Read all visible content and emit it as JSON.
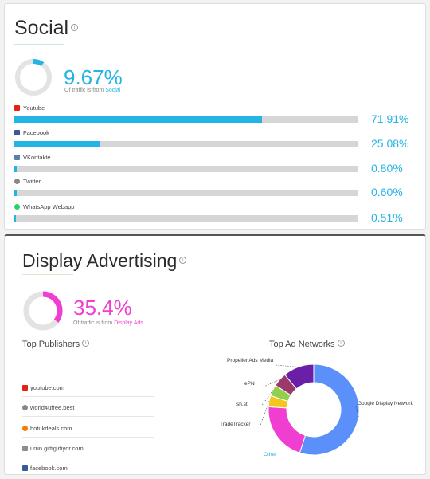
{
  "social": {
    "title": "Social",
    "percent": "9.67%",
    "gauge_fraction": 0.0967,
    "sub_prefix": "Of traffic is from ",
    "sub_link": "Social",
    "sources": [
      {
        "name": "Youtube",
        "pct": "71.91%",
        "value": 71.91,
        "icon": "youtube-icon",
        "color": "#e62117"
      },
      {
        "name": "Facebook",
        "pct": "25.08%",
        "value": 25.08,
        "icon": "facebook-icon",
        "color": "#3b5998"
      },
      {
        "name": "VKontakte",
        "pct": "0.80%",
        "value": 0.8,
        "icon": "vk-icon",
        "color": "#5b7fa6"
      },
      {
        "name": "Twitter",
        "pct": "0.60%",
        "value": 0.6,
        "icon": "twitter-icon",
        "color": "#888888"
      },
      {
        "name": "WhatsApp Webapp",
        "pct": "0.51%",
        "value": 0.51,
        "icon": "whatsapp-icon",
        "color": "#25d366"
      }
    ]
  },
  "display": {
    "title": "Display Advertising",
    "percent": "35.4%",
    "gauge_fraction": 0.354,
    "sub_prefix": "Of traffic is from ",
    "sub_link": "Display Ads",
    "publishers_heading": "Top Publishers",
    "networks_heading": "Top Ad Networks",
    "publishers": [
      {
        "name": "youtube.com",
        "icon": "youtube-icon",
        "color": "#e62117"
      },
      {
        "name": "world4ufree.best",
        "icon": "globe-icon",
        "color": "#888888"
      },
      {
        "name": "hotukdeals.com",
        "icon": "flame-icon",
        "color": "#f57c00"
      },
      {
        "name": "urun.gittigidiyor.com",
        "icon": "gittigidiyor-icon",
        "color": "#8e8e8e"
      },
      {
        "name": "facebook.com",
        "icon": "facebook-icon",
        "color": "#3b5998"
      }
    ]
  },
  "chart_data": {
    "type": "pie",
    "donut": true,
    "series": [
      {
        "name": "Google Display Network",
        "value": 55,
        "color": "#5b8ff9"
      },
      {
        "name": "Other",
        "value": 21,
        "color": "#f03ed0"
      },
      {
        "name": "TradeTracker",
        "value": 4,
        "color": "#f5c518"
      },
      {
        "name": "sh.st",
        "value": 4,
        "color": "#8fd14f"
      },
      {
        "name": "ePN",
        "value": 5,
        "color": "#9b3a6a"
      },
      {
        "name": "Propeller Ads Media",
        "value": 11,
        "color": "#6b1fa8"
      }
    ]
  }
}
